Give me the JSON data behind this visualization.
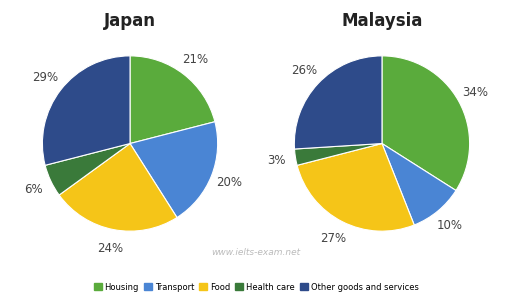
{
  "japan": {
    "title": "Japan",
    "labels": [
      "Housing",
      "Transport",
      "Food",
      "Health care",
      "Other goods and services"
    ],
    "values": [
      21,
      20,
      24,
      6,
      29
    ],
    "colors": [
      "#5aab3c",
      "#4a85d4",
      "#f5c518",
      "#3a7a3a",
      "#2e4b8a"
    ],
    "startangle": 90,
    "pct_labels": [
      "21%",
      "20%",
      "24%",
      "6%",
      "29%"
    ]
  },
  "malaysia": {
    "title": "Malaysia",
    "labels": [
      "Housing",
      "Transport",
      "Food",
      "Health care",
      "Other goods and services"
    ],
    "values": [
      34,
      10,
      27,
      3,
      26
    ],
    "colors": [
      "#5aab3c",
      "#4a85d4",
      "#f5c518",
      "#3a7a3a",
      "#2e4b8a"
    ],
    "startangle": 90,
    "pct_labels": [
      "34%",
      "10%",
      "27%",
      "3%",
      "26%"
    ]
  },
  "legend_labels": [
    "Housing",
    "Transport",
    "Food",
    "Health care",
    "Other goods and services"
  ],
  "legend_colors": [
    "#5aab3c",
    "#4a85d4",
    "#f5c518",
    "#3a7a3a",
    "#2e4b8a"
  ],
  "watermark": "www.ielts-exam.net",
  "background_color": "#ffffff",
  "title_fontsize": 12,
  "pct_fontsize": 8.5
}
